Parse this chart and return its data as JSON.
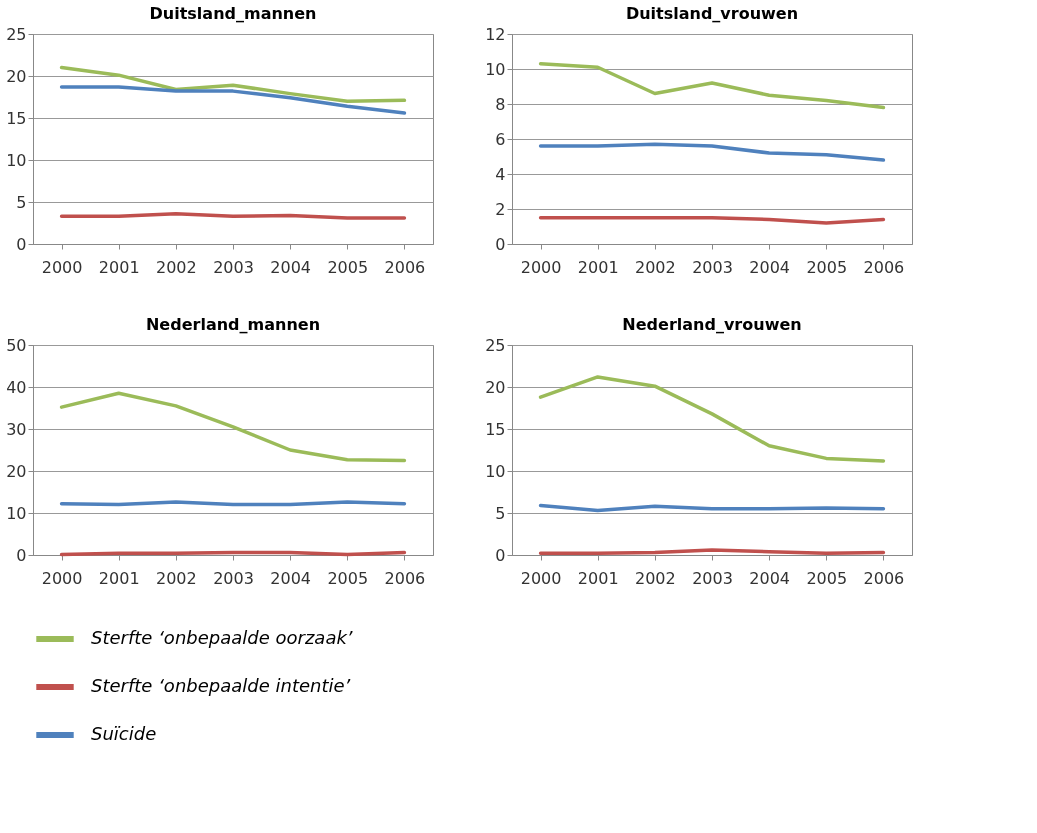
{
  "chart_data": [
    {
      "type": "line",
      "title": "Duitsland_mannen",
      "categories": [
        "2000",
        "2001",
        "2002",
        "2003",
        "2004",
        "2005",
        "2006"
      ],
      "ylim": [
        0,
        25
      ],
      "yticks": [
        0,
        5,
        10,
        15,
        20,
        25
      ],
      "grid": "y",
      "legend": "bottom",
      "series": [
        {
          "name": "Sterfte ‘onbepaalde oorzaak’",
          "color": "#9bbb59",
          "values": [
            21.0,
            20.1,
            18.4,
            18.9,
            17.9,
            17.0,
            17.1
          ]
        },
        {
          "name": "Sterfte ‘onbepaalde intentie’",
          "color": "#c0504d",
          "values": [
            3.3,
            3.3,
            3.6,
            3.3,
            3.4,
            3.1,
            3.1
          ]
        },
        {
          "name": "Suïcide",
          "color": "#4f81bd",
          "values": [
            18.7,
            18.7,
            18.2,
            18.2,
            17.4,
            16.4,
            15.6
          ]
        }
      ]
    },
    {
      "type": "line",
      "title": "Duitsland_vrouwen",
      "categories": [
        "2000",
        "2001",
        "2002",
        "2003",
        "2004",
        "2005",
        "2006"
      ],
      "ylim": [
        0,
        12
      ],
      "yticks": [
        0,
        2,
        4,
        6,
        8,
        10,
        12
      ],
      "grid": "y",
      "legend": "bottom",
      "series": [
        {
          "name": "Sterfte ‘onbepaalde oorzaak’",
          "color": "#9bbb59",
          "values": [
            10.3,
            10.1,
            8.6,
            9.2,
            8.5,
            8.2,
            7.8
          ]
        },
        {
          "name": "Sterfte ‘onbepaalde intentie’",
          "color": "#c0504d",
          "values": [
            1.5,
            1.5,
            1.5,
            1.5,
            1.4,
            1.2,
            1.4
          ]
        },
        {
          "name": "Suïcide",
          "color": "#4f81bd",
          "values": [
            5.6,
            5.6,
            5.7,
            5.6,
            5.2,
            5.1,
            4.8
          ]
        }
      ]
    },
    {
      "type": "line",
      "title": "Nederland_mannen",
      "categories": [
        "2000",
        "2001",
        "2002",
        "2003",
        "2004",
        "2005",
        "2006"
      ],
      "ylim": [
        0,
        50
      ],
      "yticks": [
        0,
        10,
        20,
        30,
        40,
        50
      ],
      "grid": "y",
      "legend": "bottom",
      "series": [
        {
          "name": "Sterfte ‘onbepaalde oorzaak’",
          "color": "#9bbb59",
          "values": [
            35.2,
            38.5,
            35.5,
            30.5,
            25.0,
            22.7,
            22.5
          ]
        },
        {
          "name": "Sterfte ‘onbepaalde intentie’",
          "color": "#c0504d",
          "values": [
            0.1,
            0.4,
            0.4,
            0.6,
            0.6,
            0.1,
            0.6
          ]
        },
        {
          "name": "Suïcide",
          "color": "#4f81bd",
          "values": [
            12.2,
            12.0,
            12.6,
            12.0,
            12.0,
            12.6,
            12.2
          ]
        }
      ]
    },
    {
      "type": "line",
      "title": "Nederland_vrouwen",
      "categories": [
        "2000",
        "2001",
        "2002",
        "2003",
        "2004",
        "2005",
        "2006"
      ],
      "ylim": [
        0,
        25
      ],
      "yticks": [
        0,
        5,
        10,
        15,
        20,
        25
      ],
      "grid": "y",
      "legend": "bottom",
      "series": [
        {
          "name": "Sterfte ‘onbepaalde oorzaak’",
          "color": "#9bbb59",
          "values": [
            18.8,
            21.2,
            20.1,
            16.8,
            13.0,
            11.5,
            11.2
          ]
        },
        {
          "name": "Sterfte ‘onbepaalde intentie’",
          "color": "#c0504d",
          "values": [
            0.2,
            0.2,
            0.3,
            0.6,
            0.4,
            0.2,
            0.3
          ]
        },
        {
          "name": "Suïcide",
          "color": "#4f81bd",
          "values": [
            5.9,
            5.3,
            5.8,
            5.5,
            5.5,
            5.6,
            5.5
          ]
        }
      ]
    }
  ]
}
